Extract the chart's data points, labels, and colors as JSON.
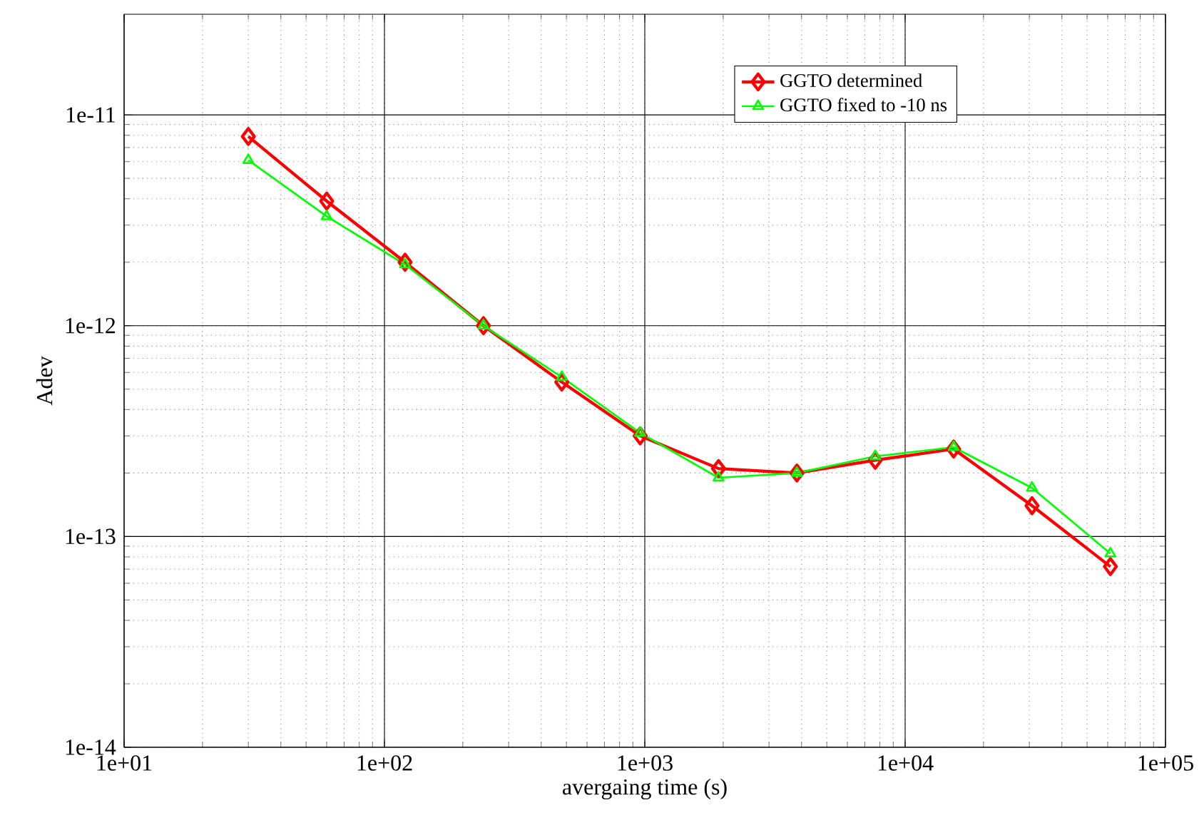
{
  "chart_data": {
    "type": "line",
    "xlabel": "avergaing time (s)",
    "ylabel": "Adev",
    "log": "xy",
    "grid": true,
    "legend": "top right",
    "xlim": [
      10,
      100000
    ],
    "ylim": [
      1e-14,
      3e-11
    ],
    "xticks": [
      {
        "value": 10,
        "label": "1e+01"
      },
      {
        "value": 100,
        "label": "1e+02"
      },
      {
        "value": 1000,
        "label": "1e+03"
      },
      {
        "value": 10000,
        "label": "1e+04"
      },
      {
        "value": 100000,
        "label": "1e+05"
      }
    ],
    "yticks": [
      {
        "value": 1e-14,
        "label": "1e-14"
      },
      {
        "value": 1e-13,
        "label": "1e-13"
      },
      {
        "value": 1e-12,
        "label": "1e-12"
      },
      {
        "value": 1e-11,
        "label": "1e-11"
      }
    ],
    "x": [
      30,
      60,
      120,
      240,
      480,
      960,
      1920,
      3840,
      7680,
      15360,
      30720,
      61440
    ],
    "series": [
      {
        "name": "GGTO determined",
        "color": "#ff0000",
        "marker": "diamond",
        "values": [
          7.9e-12,
          3.9e-12,
          2e-12,
          1e-12,
          5.4e-13,
          3e-13,
          2.1e-13,
          2e-13,
          2.3e-13,
          2.6e-13,
          1.4e-13,
          7.2e-14
        ]
      },
      {
        "name": "GGTO fixed to -10 ns",
        "color": "#00ff00",
        "marker": "triangle",
        "values": [
          6.1e-12,
          3.3e-12,
          1.95e-12,
          1e-12,
          5.7e-13,
          3.1e-13,
          1.9e-13,
          2e-13,
          2.4e-13,
          2.65e-13,
          1.7e-13,
          8.3e-14
        ]
      }
    ]
  }
}
